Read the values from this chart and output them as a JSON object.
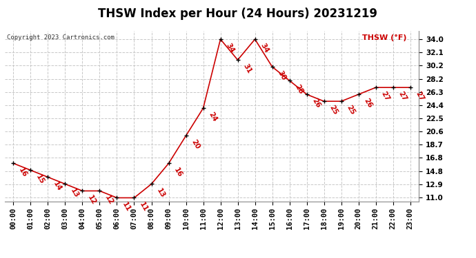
{
  "title": "THSW Index per Hour (24 Hours) 20231219",
  "copyright": "Copyright 2023 Cartronics.com",
  "legend_label": "THSW (°F)",
  "hours": [
    0,
    1,
    2,
    3,
    4,
    5,
    6,
    7,
    8,
    9,
    10,
    11,
    12,
    13,
    14,
    15,
    16,
    17,
    18,
    19,
    20,
    21,
    22,
    23
  ],
  "values": [
    16,
    15,
    14,
    13,
    12,
    12,
    11,
    11,
    13,
    16,
    20,
    24,
    34,
    31,
    34,
    30,
    28,
    26,
    25,
    25,
    26,
    27,
    27,
    27
  ],
  "yticks": [
    11.0,
    12.9,
    14.8,
    16.8,
    18.7,
    20.6,
    22.5,
    24.4,
    26.3,
    28.2,
    30.2,
    32.1,
    34.0
  ],
  "ylim": [
    10.5,
    35.2
  ],
  "line_color": "#cc0000",
  "marker_color": "#000000",
  "bg_color": "#ffffff",
  "plot_bg_color": "#ffffff",
  "grid_color": "#c8c8c8",
  "title_fontsize": 12,
  "label_fontsize": 8,
  "tick_fontsize": 7.5,
  "annot_fontsize": 7.5
}
